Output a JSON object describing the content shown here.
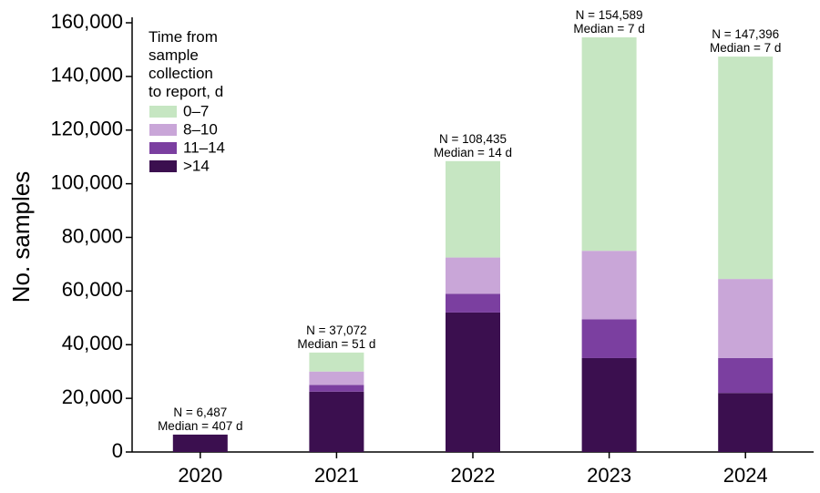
{
  "chart_data": {
    "type": "bar",
    "stacked": true,
    "title": "",
    "xlabel": "",
    "ylabel": "No. samples",
    "ylim": [
      0,
      160000
    ],
    "yticks": [
      0,
      20000,
      40000,
      60000,
      80000,
      100000,
      120000,
      140000,
      160000
    ],
    "ytick_labels": [
      "0",
      "20,000",
      "40,000",
      "60,000",
      "80,000",
      "100,000",
      "120,000",
      "140,000",
      "160,000"
    ],
    "categories": [
      "2020",
      "2021",
      "2022",
      "2023",
      "2024"
    ],
    "legend": {
      "title": [
        "Time from",
        "sample",
        "collection",
        "to report, d"
      ],
      "placement": "top-left"
    },
    "series": [
      {
        "name": ">14",
        "color": "#3b0f4f",
        "values": [
          6487,
          22500,
          52000,
          35000,
          22000
        ]
      },
      {
        "name": "11–14",
        "color": "#7b3fa0",
        "values": [
          0,
          2500,
          7000,
          14500,
          13000
        ]
      },
      {
        "name": "8–10",
        "color": "#c9a6d8",
        "values": [
          0,
          5000,
          13500,
          25500,
          29500
        ]
      },
      {
        "name": "0–7",
        "color": "#c6e6c2",
        "values": [
          0,
          7072,
          35935,
          79589,
          82896
        ]
      }
    ],
    "annotations": [
      {
        "category": "2020",
        "line1": "N = 6,487",
        "line2": "Median = 407 d"
      },
      {
        "category": "2021",
        "line1": "N = 37,072",
        "line2": "Median = 51 d"
      },
      {
        "category": "2022",
        "line1": "N = 108,435",
        "line2": "Median = 14 d"
      },
      {
        "category": "2023",
        "line1": "N = 154,589",
        "line2": "Median = 7 d"
      },
      {
        "category": "2024",
        "line1": "N = 147,396",
        "line2": "Median = 7 d"
      }
    ]
  }
}
